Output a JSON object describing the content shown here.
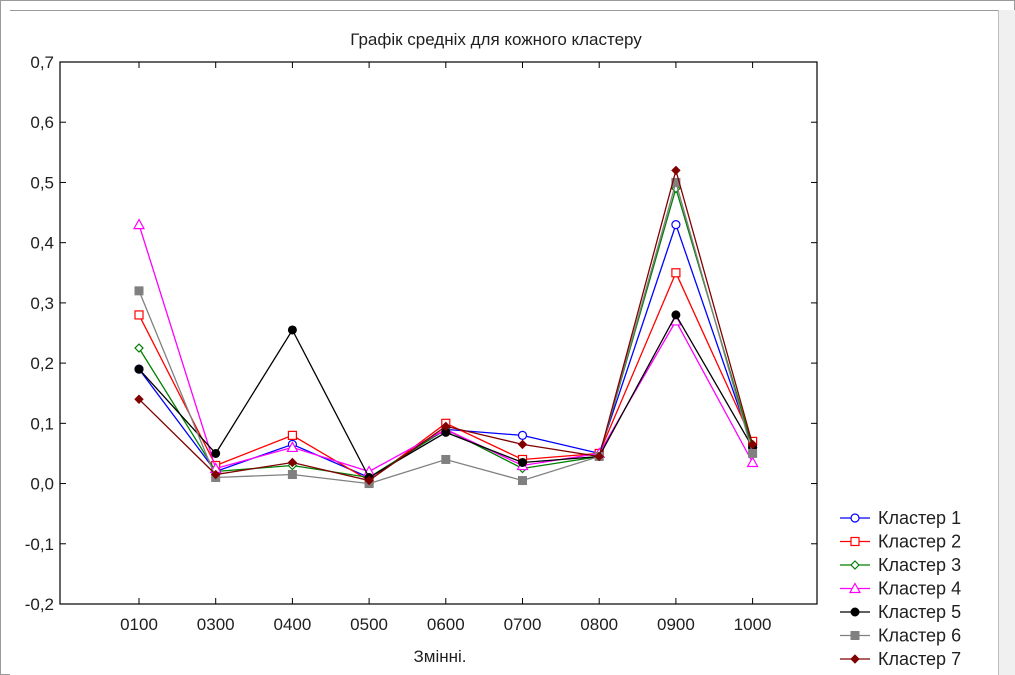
{
  "chart_data": {
    "type": "line",
    "title": "Графік средніх для кожного кластеру",
    "xlabel": "Змінні.",
    "ylabel": "",
    "categories": [
      "0100",
      "0300",
      "0400",
      "0500",
      "0600",
      "0700",
      "0800",
      "0900",
      "1000"
    ],
    "ylim": [
      -0.2,
      0.7
    ],
    "yticks": [
      "0,7",
      "0,6",
      "0,5",
      "0,4",
      "0,3",
      "0,2",
      "0,1",
      "0,0",
      "-0,1",
      "-0,2"
    ],
    "grid": false,
    "legend_position": "bottom-right",
    "series": [
      {
        "name": "Кластер  1",
        "color": "#0000ff",
        "marker": "circle-open",
        "values": [
          0.19,
          0.02,
          0.065,
          0.01,
          0.09,
          0.08,
          0.05,
          0.43,
          0.06
        ]
      },
      {
        "name": "Кластер  2",
        "color": "#ff0000",
        "marker": "square-open",
        "values": [
          0.28,
          0.03,
          0.08,
          0.005,
          0.1,
          0.04,
          0.05,
          0.35,
          0.07
        ]
      },
      {
        "name": "Кластер  3",
        "color": "#008000",
        "marker": "diamond-open",
        "values": [
          0.225,
          0.02,
          0.03,
          0.01,
          0.09,
          0.025,
          0.045,
          0.49,
          0.06
        ]
      },
      {
        "name": "Кластер  4",
        "color": "#ff00ff",
        "marker": "triangle-open",
        "values": [
          0.43,
          0.025,
          0.06,
          0.02,
          0.09,
          0.03,
          0.05,
          0.27,
          0.035
        ]
      },
      {
        "name": "Кластер  5",
        "color": "#000000",
        "marker": "circle-filled",
        "values": [
          0.19,
          0.05,
          0.255,
          0.01,
          0.085,
          0.035,
          0.045,
          0.28,
          0.06
        ]
      },
      {
        "name": "Кластер  6",
        "color": "#808080",
        "marker": "square-filled",
        "values": [
          0.32,
          0.01,
          0.015,
          0.0,
          0.04,
          0.005,
          0.045,
          0.5,
          0.05
        ]
      },
      {
        "name": "Кластер  7",
        "color": "#800000",
        "marker": "diamond-filled",
        "values": [
          0.14,
          0.015,
          0.035,
          0.005,
          0.095,
          0.065,
          0.045,
          0.52,
          0.065
        ]
      }
    ]
  }
}
